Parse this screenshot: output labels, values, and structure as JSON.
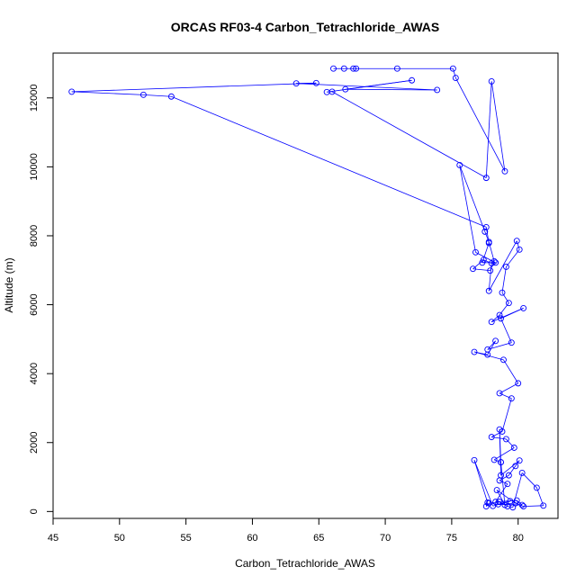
{
  "chart_data": {
    "type": "line",
    "title": "ORCAS RF03-4 Carbon_Tetrachloride_AWAS",
    "xlabel": "Carbon_Tetrachloride_AWAS",
    "ylabel": "Altitude (m)",
    "xlim": [
      45,
      83
    ],
    "ylim": [
      -200,
      13300
    ],
    "xticks": [
      45,
      50,
      55,
      60,
      65,
      70,
      75,
      80
    ],
    "yticks": [
      0,
      2000,
      4000,
      6000,
      8000,
      10000,
      12000
    ],
    "grid": false,
    "line_color": "#0000ff",
    "marker": "open-circle",
    "series": [
      {
        "x": [
          66.1,
          66.9,
          67.6,
          67.8,
          70.9,
          75.1,
          75.3,
          79.0,
          78.0,
          77.6,
          66.0,
          65.6,
          72.0,
          67.0,
          73.9,
          63.3,
          64.8,
          46.4,
          51.8,
          53.9,
          77.6,
          77.8,
          77.3,
          78.3,
          76.8,
          75.6,
          77.5,
          77.8,
          78.2,
          77.9,
          76.6,
          77.4,
          78.0,
          77.8,
          79.9,
          80.1,
          79.1,
          78.8,
          79.3,
          78.6,
          78.0,
          80.4,
          78.7,
          79.5,
          77.7,
          78.3,
          77.7,
          76.7,
          78.9,
          80.0,
          78.6,
          79.5,
          78.8,
          78.0,
          79.1,
          79.7,
          78.2,
          78.7,
          78.6,
          78.7,
          80.1,
          79.8,
          79.3,
          78.6,
          79.2,
          78.3,
          79.9,
          80.3,
          78.5,
          79.4,
          78.1,
          76.7,
          77.7,
          77.6,
          77.8,
          78.6,
          79.2,
          79.6,
          80.3,
          81.4,
          81.9,
          80.4,
          79.8,
          78.4,
          79.0,
          78.7
        ],
        "y": [
          12850,
          12850,
          12850,
          12850,
          12850,
          12850,
          12580,
          9870,
          12480,
          9680,
          12180,
          12170,
          12510,
          12250,
          12230,
          12420,
          12430,
          12180,
          12090,
          12040,
          8250,
          7790,
          7220,
          7220,
          7520,
          10050,
          8120,
          7820,
          7260,
          6990,
          7040,
          7300,
          7200,
          6400,
          7850,
          7600,
          7100,
          6350,
          6050,
          5700,
          5500,
          5900,
          5600,
          4900,
          4700,
          4950,
          4550,
          4630,
          4400,
          3720,
          3430,
          3280,
          2320,
          2160,
          2100,
          1850,
          1500,
          1430,
          2380,
          1050,
          1480,
          1320,
          1050,
          900,
          800,
          280,
          320,
          190,
          210,
          300,
          160,
          1490,
          260,
          150,
          240,
          280,
          150,
          120,
          1120,
          690,
          170,
          150,
          240,
          620,
          190,
          1430
        ]
      }
    ]
  }
}
